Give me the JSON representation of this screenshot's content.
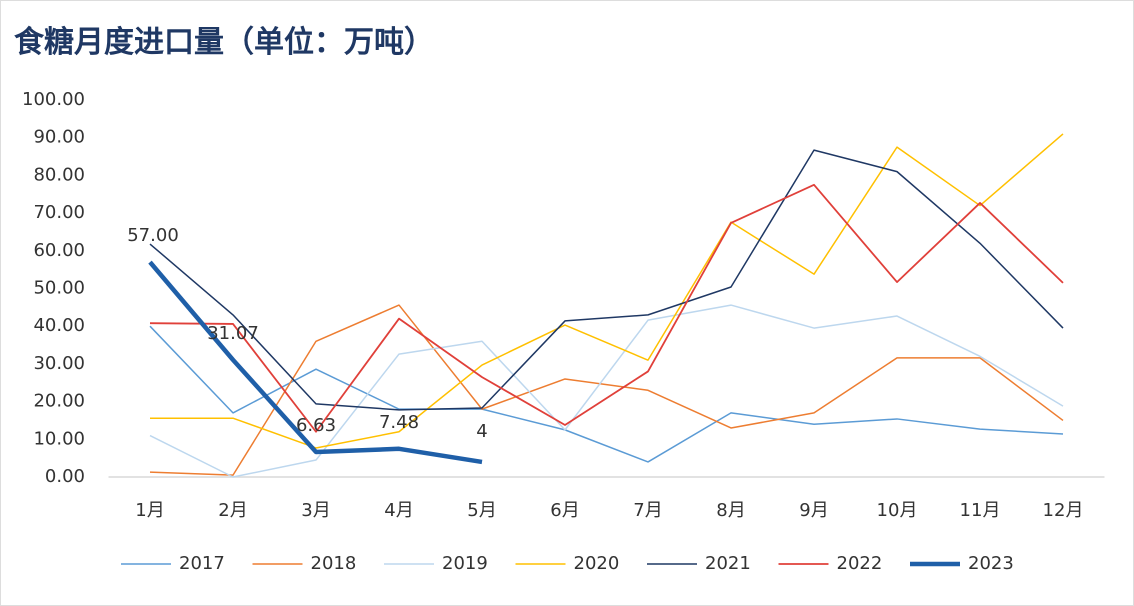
{
  "chart_data": {
    "type": "line",
    "title": "食糖月度进口量（单位：万吨）",
    "categories": [
      "1月",
      "2月",
      "3月",
      "4月",
      "5月",
      "6月",
      "7月",
      "8月",
      "9月",
      "10月",
      "11月",
      "12月"
    ],
    "ylim": [
      0,
      100
    ],
    "yticks": [
      {
        "value": 0,
        "label": "0.00"
      },
      {
        "value": 10,
        "label": "10.00"
      },
      {
        "value": 20,
        "label": "20.00"
      },
      {
        "value": 30,
        "label": "30.00"
      },
      {
        "value": 40,
        "label": "40.00"
      },
      {
        "value": 50,
        "label": "50.00"
      },
      {
        "value": 60,
        "label": "60.00"
      },
      {
        "value": 70,
        "label": "70.00"
      },
      {
        "value": 80,
        "label": "80.00"
      },
      {
        "value": 90,
        "label": "90.00"
      },
      {
        "value": 100,
        "label": "100.00"
      }
    ],
    "grid": false,
    "legend": "bottom",
    "series": [
      {
        "name": "2017",
        "color": "#5b9bd5",
        "width": 1.5,
        "values": [
          40,
          17,
          28.6,
          18,
          18,
          12.5,
          4,
          17,
          14,
          15.4,
          12.7,
          11.4
        ]
      },
      {
        "name": "2018",
        "color": "#ed7d31",
        "width": 1.5,
        "values": [
          1.3,
          0.5,
          36,
          45.6,
          18,
          26,
          23,
          13,
          17,
          31.6,
          31.6,
          15
        ]
      },
      {
        "name": "2019",
        "color": "#bdd7ee",
        "width": 1.5,
        "values": [
          11,
          0,
          4.5,
          32.6,
          36,
          12.5,
          41.6,
          45.6,
          39.5,
          42.7,
          32,
          18.8
        ]
      },
      {
        "name": "2020",
        "color": "#ffc000",
        "width": 1.5,
        "values": [
          15.6,
          15.6,
          7.7,
          12,
          29.7,
          40.3,
          31,
          67.6,
          53.8,
          87.5,
          72,
          91
        ]
      },
      {
        "name": "2021",
        "color": "#1f3864",
        "width": 1.5,
        "values": [
          61.8,
          43,
          19.4,
          17.8,
          18.3,
          41.4,
          43,
          50.4,
          86.7,
          81,
          62,
          39.5
        ]
      },
      {
        "name": "2022",
        "color": "#e0403a",
        "width": 1.8,
        "values": [
          40.8,
          40.6,
          12,
          42,
          26.5,
          13.8,
          28,
          67.4,
          77.5,
          51.7,
          72.7,
          51.5
        ]
      },
      {
        "name": "2023",
        "color": "#1f5fa8",
        "width": 4.5,
        "values": [
          57,
          31.07,
          6.63,
          7.48,
          4,
          null,
          null,
          null,
          null,
          null,
          null,
          null
        ],
        "value_labels": [
          "57.00",
          "31.07",
          "6.63",
          "7.48",
          "4",
          null,
          null,
          null,
          null,
          null,
          null,
          null
        ]
      }
    ]
  }
}
